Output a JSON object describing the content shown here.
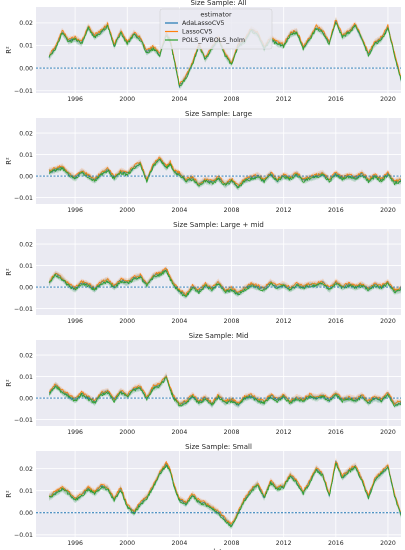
{
  "chart_data": [
    {
      "type": "line",
      "title": "Size Sample: All",
      "xlabel": "",
      "ylabel": "R²",
      "xlim": [
        1993.0,
        2021.0
      ],
      "ylim": [
        -0.011,
        0.027
      ],
      "xticks": [
        1996,
        2000,
        2004,
        2008,
        2012,
        2016,
        2020
      ],
      "yticks": [
        -0.01,
        0.0,
        0.01,
        0.02
      ],
      "ytick_labels": [
        "−0.01",
        "0.00",
        "0.01",
        "0.02"
      ],
      "grid": true,
      "zero_line": 0.0,
      "legend": {
        "title": "estimator",
        "placement": "top-center",
        "entries": [
          "AdaLassoCV5",
          "LassoCV5",
          "POLS_PVBOLS_holm"
        ]
      },
      "series": [
        {
          "name": "AdaLassoCV5",
          "color": "#1f77b4"
        },
        {
          "name": "LassoCV5",
          "color": "#ff7f0e"
        },
        {
          "name": "POLS_PVBOLS_holm",
          "color": "#2ca02c"
        }
      ],
      "x": [
        1994.0,
        1994.5,
        1995.0,
        1995.5,
        1996.0,
        1996.5,
        1997.0,
        1997.5,
        1998.0,
        1998.5,
        1999.0,
        1999.5,
        2000.0,
        2000.5,
        2001.0,
        2001.5,
        2002.0,
        2002.5,
        2003.0,
        2003.3,
        2003.6,
        2004.0,
        2004.5,
        2005.0,
        2005.5,
        2006.0,
        2006.5,
        2007.0,
        2007.5,
        2008.0,
        2008.5,
        2009.0,
        2009.5,
        2010.0,
        2010.5,
        2011.0,
        2011.5,
        2012.0,
        2012.5,
        2013.0,
        2013.5,
        2014.0,
        2014.5,
        2015.0,
        2015.5,
        2016.0,
        2016.5,
        2017.0,
        2017.5,
        2018.0,
        2018.5,
        2019.0,
        2019.5,
        2020.0,
        2020.5,
        2021.0
      ],
      "y": [
        0.005,
        0.009,
        0.016,
        0.012,
        0.013,
        0.011,
        0.018,
        0.014,
        0.016,
        0.019,
        0.01,
        0.016,
        0.011,
        0.015,
        0.013,
        0.007,
        0.009,
        0.006,
        0.015,
        0.012,
        0.004,
        -0.008,
        -0.004,
        0.002,
        0.01,
        0.004,
        0.009,
        0.013,
        0.006,
        0.002,
        0.01,
        0.012,
        0.017,
        0.015,
        0.009,
        0.013,
        0.011,
        0.01,
        0.015,
        0.016,
        0.009,
        0.013,
        0.018,
        0.016,
        0.011,
        0.021,
        0.014,
        0.016,
        0.019,
        0.013,
        0.006,
        0.011,
        0.013,
        0.018,
        0.006,
        -0.005
      ]
    },
    {
      "type": "line",
      "title": "Size Sample: Large",
      "xlabel": "",
      "ylabel": "R²",
      "xlim": [
        1993.0,
        2021.0
      ],
      "ylim": [
        -0.013,
        0.027
      ],
      "xticks": [
        1996,
        2000,
        2004,
        2008,
        2012,
        2016,
        2020
      ],
      "yticks": [
        -0.01,
        0.0,
        0.01,
        0.02
      ],
      "ytick_labels": [
        "−0.01",
        "0.00",
        "0.01",
        "0.02"
      ],
      "grid": true,
      "zero_line": 0.0,
      "series": [
        {
          "name": "AdaLassoCV5",
          "color": "#1f77b4"
        },
        {
          "name": "LassoCV5",
          "color": "#ff7f0e"
        },
        {
          "name": "POLS_PVBOLS_holm",
          "color": "#2ca02c"
        }
      ],
      "x": [
        1994.0,
        1994.5,
        1995.0,
        1995.5,
        1996.0,
        1996.5,
        1997.0,
        1997.5,
        1998.0,
        1998.5,
        1999.0,
        1999.5,
        2000.0,
        2000.5,
        2001.0,
        2001.5,
        2002.0,
        2002.5,
        2003.0,
        2003.3,
        2003.6,
        2004.0,
        2004.5,
        2005.0,
        2005.5,
        2006.0,
        2006.5,
        2007.0,
        2007.5,
        2008.0,
        2008.5,
        2009.0,
        2009.5,
        2010.0,
        2010.5,
        2011.0,
        2011.5,
        2012.0,
        2012.5,
        2013.0,
        2013.5,
        2014.0,
        2014.5,
        2015.0,
        2015.5,
        2016.0,
        2016.5,
        2017.0,
        2017.5,
        2018.0,
        2018.5,
        2019.0,
        2019.5,
        2020.0,
        2020.5,
        2021.0
      ],
      "y": [
        0.002,
        0.003,
        0.004,
        0.001,
        -0.001,
        0.002,
        0.0,
        -0.002,
        0.001,
        0.003,
        -0.001,
        0.002,
        0.001,
        0.004,
        0.006,
        -0.002,
        0.005,
        0.008,
        0.004,
        0.006,
        0.002,
        0.001,
        -0.002,
        -0.001,
        -0.004,
        -0.002,
        -0.003,
        -0.001,
        -0.004,
        -0.002,
        -0.005,
        -0.002,
        -0.001,
        0.0,
        -0.002,
        0.001,
        -0.002,
        0.0,
        -0.001,
        0.001,
        -0.002,
        -0.001,
        0.0,
        0.001,
        -0.002,
        0.001,
        -0.001,
        0.0,
        -0.001,
        0.001,
        -0.002,
        0.0,
        -0.002,
        0.001,
        -0.003,
        -0.002
      ]
    },
    {
      "type": "line",
      "title": "Size Sample: Large + mid",
      "xlabel": "",
      "ylabel": "R²",
      "xlim": [
        1993.0,
        2021.0
      ],
      "ylim": [
        -0.013,
        0.027
      ],
      "xticks": [
        1996,
        2000,
        2004,
        2008,
        2012,
        2016,
        2020
      ],
      "yticks": [
        -0.01,
        0.0,
        0.01,
        0.02
      ],
      "ytick_labels": [
        "−0.01",
        "0.00",
        "0.01",
        "0.02"
      ],
      "grid": true,
      "zero_line": 0.0,
      "series": [
        {
          "name": "AdaLassoCV5",
          "color": "#1f77b4"
        },
        {
          "name": "LassoCV5",
          "color": "#ff7f0e"
        },
        {
          "name": "POLS_PVBOLS_holm",
          "color": "#2ca02c"
        }
      ],
      "x": [
        1994.0,
        1994.5,
        1995.0,
        1995.5,
        1996.0,
        1996.5,
        1997.0,
        1997.5,
        1998.0,
        1998.5,
        1999.0,
        1999.5,
        2000.0,
        2000.5,
        2001.0,
        2001.5,
        2002.0,
        2002.5,
        2003.0,
        2003.3,
        2003.6,
        2004.0,
        2004.5,
        2005.0,
        2005.5,
        2006.0,
        2006.5,
        2007.0,
        2007.5,
        2008.0,
        2008.5,
        2009.0,
        2009.5,
        2010.0,
        2010.5,
        2011.0,
        2011.5,
        2012.0,
        2012.5,
        2013.0,
        2013.5,
        2014.0,
        2014.5,
        2015.0,
        2015.5,
        2016.0,
        2016.5,
        2017.0,
        2017.5,
        2018.0,
        2018.5,
        2019.0,
        2019.5,
        2020.0,
        2020.5,
        2021.0
      ],
      "y": [
        0.002,
        0.006,
        0.004,
        0.001,
        -0.001,
        0.002,
        0.001,
        -0.001,
        0.002,
        0.003,
        0.0,
        0.003,
        0.002,
        0.004,
        0.005,
        0.001,
        0.005,
        0.006,
        0.008,
        0.004,
        0.001,
        -0.002,
        -0.004,
        0.0,
        -0.002,
        0.001,
        -0.001,
        0.002,
        -0.002,
        -0.001,
        -0.003,
        -0.001,
        0.001,
        0.0,
        -0.001,
        0.002,
        0.0,
        0.001,
        -0.001,
        0.001,
        0.0,
        0.001,
        0.001,
        0.002,
        -0.001,
        0.002,
        0.0,
        0.001,
        0.0,
        0.001,
        -0.001,
        0.001,
        0.0,
        0.002,
        -0.002,
        -0.001
      ]
    },
    {
      "type": "line",
      "title": "Size Sample: Mid",
      "xlabel": "",
      "ylabel": "R²",
      "xlim": [
        1993.0,
        2021.0
      ],
      "ylim": [
        -0.013,
        0.027
      ],
      "xticks": [
        1996,
        2000,
        2004,
        2008,
        2012,
        2016,
        2020
      ],
      "yticks": [
        -0.01,
        0.0,
        0.01,
        0.02
      ],
      "ytick_labels": [
        "−0.01",
        "0.00",
        "0.01",
        "0.02"
      ],
      "grid": true,
      "zero_line": 0.0,
      "series": [
        {
          "name": "AdaLassoCV5",
          "color": "#1f77b4"
        },
        {
          "name": "LassoCV5",
          "color": "#ff7f0e"
        },
        {
          "name": "POLS_PVBOLS_holm",
          "color": "#2ca02c"
        }
      ],
      "x": [
        1994.0,
        1994.5,
        1995.0,
        1995.5,
        1996.0,
        1996.5,
        1997.0,
        1997.5,
        1998.0,
        1998.5,
        1999.0,
        1999.5,
        2000.0,
        2000.5,
        2001.0,
        2001.5,
        2002.0,
        2002.5,
        2003.0,
        2003.3,
        2003.6,
        2004.0,
        2004.5,
        2005.0,
        2005.5,
        2006.0,
        2006.5,
        2007.0,
        2007.5,
        2008.0,
        2008.5,
        2009.0,
        2009.5,
        2010.0,
        2010.5,
        2011.0,
        2011.5,
        2012.0,
        2012.5,
        2013.0,
        2013.5,
        2014.0,
        2014.5,
        2015.0,
        2015.5,
        2016.0,
        2016.5,
        2017.0,
        2017.5,
        2018.0,
        2018.5,
        2019.0,
        2019.5,
        2020.0,
        2020.5,
        2021.0
      ],
      "y": [
        0.002,
        0.006,
        0.003,
        0.001,
        -0.001,
        0.002,
        0.0,
        -0.002,
        0.002,
        0.003,
        -0.001,
        0.003,
        0.001,
        0.004,
        0.005,
        0.0,
        0.005,
        0.006,
        0.01,
        0.004,
        0.0,
        -0.003,
        -0.002,
        0.001,
        -0.002,
        0.0,
        -0.003,
        0.001,
        -0.002,
        -0.001,
        -0.003,
        0.0,
        0.001,
        -0.001,
        -0.002,
        0.001,
        -0.001,
        0.001,
        -0.002,
        0.0,
        -0.001,
        0.001,
        0.0,
        0.001,
        -0.001,
        0.002,
        -0.001,
        0.0,
        -0.001,
        0.001,
        -0.002,
        0.0,
        -0.001,
        0.002,
        -0.003,
        -0.002
      ]
    },
    {
      "type": "line",
      "title": "Size Sample: Small",
      "xlabel": "date",
      "ylabel": "R²",
      "xlim": [
        1993.0,
        2021.0
      ],
      "ylim": [
        -0.011,
        0.028
      ],
      "xticks": [
        1996,
        2000,
        2004,
        2008,
        2012,
        2016,
        2020
      ],
      "yticks": [
        -0.01,
        0.0,
        0.01,
        0.02
      ],
      "ytick_labels": [
        "−0.01",
        "0.00",
        "0.01",
        "0.02"
      ],
      "grid": true,
      "zero_line": 0.0,
      "series": [
        {
          "name": "AdaLassoCV5",
          "color": "#1f77b4"
        },
        {
          "name": "LassoCV5",
          "color": "#ff7f0e"
        },
        {
          "name": "POLS_PVBOLS_holm",
          "color": "#2ca02c"
        }
      ],
      "x": [
        1994.0,
        1994.5,
        1995.0,
        1995.5,
        1996.0,
        1996.5,
        1997.0,
        1997.5,
        1998.0,
        1998.5,
        1999.0,
        1999.5,
        2000.0,
        2000.5,
        2001.0,
        2001.5,
        2002.0,
        2002.5,
        2003.0,
        2003.3,
        2003.6,
        2004.0,
        2004.5,
        2005.0,
        2005.5,
        2006.0,
        2006.5,
        2007.0,
        2007.5,
        2008.0,
        2008.5,
        2009.0,
        2009.5,
        2010.0,
        2010.5,
        2011.0,
        2011.5,
        2012.0,
        2012.5,
        2013.0,
        2013.5,
        2014.0,
        2014.5,
        2015.0,
        2015.5,
        2016.0,
        2016.5,
        2017.0,
        2017.5,
        2018.0,
        2018.5,
        2019.0,
        2019.5,
        2020.0,
        2020.5,
        2021.0
      ],
      "y": [
        0.007,
        0.009,
        0.011,
        0.009,
        0.006,
        0.008,
        0.011,
        0.009,
        0.012,
        0.011,
        0.006,
        0.011,
        0.003,
        0.0,
        0.004,
        0.007,
        0.012,
        0.018,
        0.022,
        0.019,
        0.012,
        0.006,
        0.004,
        0.008,
        0.005,
        0.004,
        0.002,
        0.0,
        -0.003,
        -0.006,
        0.0,
        0.006,
        0.01,
        0.013,
        0.007,
        0.014,
        0.011,
        0.012,
        0.017,
        0.014,
        0.009,
        0.014,
        0.02,
        0.017,
        0.008,
        0.023,
        0.016,
        0.019,
        0.021,
        0.015,
        0.007,
        0.015,
        0.018,
        0.021,
        0.008,
        -0.001
      ]
    }
  ]
}
